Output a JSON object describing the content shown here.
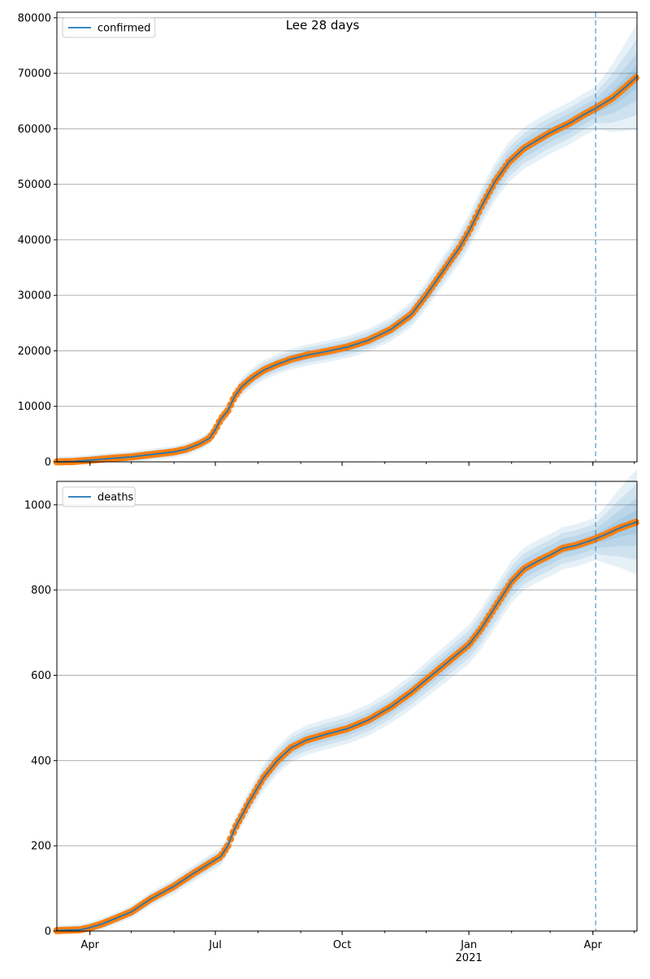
{
  "figure": {
    "title": "Lee 28 days",
    "colors": {
      "model": "#1f77b4",
      "observed": "#ff7f0e",
      "band": "#1f77b4",
      "grid": "#b0b0b0",
      "forecast_line": "#1f77b4"
    }
  },
  "chart_data": [
    {
      "type": "line",
      "ylim": [
        0,
        81000
      ],
      "yticks": [
        0,
        10000,
        20000,
        30000,
        40000,
        50000,
        60000,
        70000,
        80000
      ],
      "grid": "horizontal",
      "legend": {
        "position": "top-left",
        "entries": [
          "confirmed"
        ]
      },
      "x_axis": {
        "range": [
          "2020-03-08",
          "2021-05-03"
        ],
        "major_ticks": [
          {
            "date": "2020-04-01",
            "label": "Apr"
          },
          {
            "date": "2020-07-01",
            "label": "Jul"
          },
          {
            "date": "2020-10-01",
            "label": "Oct"
          },
          {
            "date": "2021-01-01",
            "label": "Jan",
            "sublabel": "2021"
          },
          {
            "date": "2021-04-01",
            "label": "Apr"
          }
        ],
        "tick_labels_shown": false
      },
      "forecast_start": "2021-04-03",
      "series": [
        {
          "name": "confirmed",
          "kind": "model"
        },
        {
          "kind": "observed"
        }
      ],
      "points": [
        [
          "2020-03-08",
          0
        ],
        [
          "2020-03-20",
          60
        ],
        [
          "2020-04-01",
          300
        ],
        [
          "2020-04-15",
          600
        ],
        [
          "2020-05-01",
          900
        ],
        [
          "2020-05-15",
          1300
        ],
        [
          "2020-06-01",
          1800
        ],
        [
          "2020-06-10",
          2300
        ],
        [
          "2020-06-20",
          3300
        ],
        [
          "2020-06-27",
          4300
        ],
        [
          "2020-07-01",
          5800
        ],
        [
          "2020-07-05",
          7700
        ],
        [
          "2020-07-10",
          9200
        ],
        [
          "2020-07-15",
          11800
        ],
        [
          "2020-07-20",
          13500
        ],
        [
          "2020-07-28",
          15200
        ],
        [
          "2020-08-05",
          16500
        ],
        [
          "2020-08-15",
          17600
        ],
        [
          "2020-08-25",
          18500
        ],
        [
          "2020-09-05",
          19200
        ],
        [
          "2020-09-20",
          19900
        ],
        [
          "2020-10-05",
          20700
        ],
        [
          "2020-10-20",
          21900
        ],
        [
          "2020-11-05",
          23800
        ],
        [
          "2020-11-20",
          26500
        ],
        [
          "2020-12-01",
          30000
        ],
        [
          "2020-12-15",
          35000
        ],
        [
          "2020-12-25",
          38500
        ],
        [
          "2021-01-01",
          41500
        ],
        [
          "2021-01-10",
          46000
        ],
        [
          "2021-01-20",
          50500
        ],
        [
          "2021-01-30",
          54000
        ],
        [
          "2021-02-10",
          56500
        ],
        [
          "2021-02-20",
          58000
        ],
        [
          "2021-03-01",
          59300
        ],
        [
          "2021-03-15",
          61000
        ],
        [
          "2021-03-25",
          62500
        ],
        [
          "2021-04-03",
          63700
        ],
        [
          "2021-04-15",
          65500
        ],
        [
          "2021-04-25",
          67600
        ],
        [
          "2021-05-03",
          69400
        ]
      ]
    },
    {
      "type": "line",
      "ylim": [
        0,
        1055
      ],
      "yticks": [
        0,
        200,
        400,
        600,
        800,
        1000
      ],
      "grid": "horizontal",
      "legend": {
        "position": "top-left",
        "entries": [
          "deaths"
        ]
      },
      "x_axis": {
        "range": [
          "2020-03-08",
          "2021-05-03"
        ],
        "major_ticks": [
          {
            "date": "2020-04-01",
            "label": "Apr"
          },
          {
            "date": "2020-07-01",
            "label": "Jul"
          },
          {
            "date": "2020-10-01",
            "label": "Oct"
          },
          {
            "date": "2021-01-01",
            "label": "Jan",
            "sublabel": "2021"
          },
          {
            "date": "2021-04-01",
            "label": "Apr"
          }
        ],
        "tick_labels_shown": true
      },
      "forecast_start": "2021-04-03",
      "series": [
        {
          "name": "deaths",
          "kind": "model"
        },
        {
          "kind": "observed"
        }
      ],
      "points": [
        [
          "2020-03-08",
          1
        ],
        [
          "2020-03-25",
          3
        ],
        [
          "2020-04-01",
          8
        ],
        [
          "2020-04-10",
          17
        ],
        [
          "2020-04-20",
          30
        ],
        [
          "2020-05-01",
          45
        ],
        [
          "2020-05-15",
          75
        ],
        [
          "2020-06-01",
          105
        ],
        [
          "2020-06-15",
          135
        ],
        [
          "2020-06-25",
          155
        ],
        [
          "2020-07-05",
          175
        ],
        [
          "2020-07-10",
          200
        ],
        [
          "2020-07-15",
          240
        ],
        [
          "2020-07-25",
          300
        ],
        [
          "2020-08-05",
          360
        ],
        [
          "2020-08-15",
          400
        ],
        [
          "2020-08-25",
          430
        ],
        [
          "2020-09-05",
          448
        ],
        [
          "2020-09-20",
          462
        ],
        [
          "2020-10-05",
          475
        ],
        [
          "2020-10-20",
          495
        ],
        [
          "2020-11-05",
          525
        ],
        [
          "2020-11-20",
          560
        ],
        [
          "2020-12-05",
          600
        ],
        [
          "2020-12-20",
          640
        ],
        [
          "2021-01-01",
          672
        ],
        [
          "2021-01-10",
          710
        ],
        [
          "2021-01-20",
          760
        ],
        [
          "2021-02-01",
          820
        ],
        [
          "2021-02-10",
          850
        ],
        [
          "2021-02-20",
          868
        ],
        [
          "2021-03-01",
          882
        ],
        [
          "2021-03-10",
          898
        ],
        [
          "2021-03-20",
          905
        ],
        [
          "2021-04-01",
          918
        ],
        [
          "2021-04-10",
          930
        ],
        [
          "2021-04-20",
          945
        ],
        [
          "2021-05-03",
          960
        ]
      ]
    }
  ]
}
